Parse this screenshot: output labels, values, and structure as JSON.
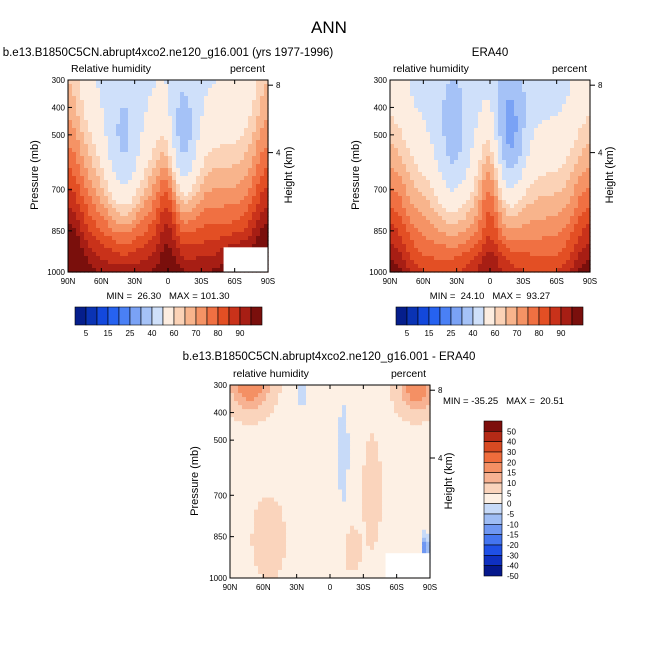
{
  "page_title": "ANN",
  "palette_full": [
    "#051E8C",
    "#0A33B4",
    "#1348DC",
    "#2662F0",
    "#4A80F5",
    "#7AA2F5",
    "#A5C2F7",
    "#CFE0FA",
    "#FDEDE0",
    "#FBD2B6",
    "#F8B48C",
    "#F59365",
    "#F07042",
    "#E34F24",
    "#C9321A",
    "#A71E14",
    "#7A0F0C"
  ],
  "palette_diff": [
    "#05188C",
    "#0F30C0",
    "#1F50E6",
    "#4475F0",
    "#6F97F2",
    "#9FBDF4",
    "#C7DAF8",
    "#FDF0E4",
    "#FAD4BC",
    "#F7B292",
    "#F49064",
    "#EF6C3C",
    "#D84A22",
    "#B42A16",
    "#7D0E0C"
  ],
  "chart_data": [
    {
      "type": "heatmap",
      "name": "model",
      "title": "b.e13.B1850C5CN.abrupt4xco2.ne120_g16.001 (yrs 1977-1996)",
      "left_label": "Relative humidity",
      "right_label": "percent",
      "stats": "MIN =  26.30   MAX = 101.30",
      "xlabel": "",
      "ylabel": "Pressure (mb)",
      "right_axis_label": "Height (km)",
      "x_ticks": [
        "90N",
        "60N",
        "30N",
        "0",
        "30S",
        "60S",
        "90S"
      ],
      "x_values": [
        90,
        60,
        30,
        0,
        -30,
        -60,
        -90
      ],
      "y_ticks": [
        "300",
        "400",
        "500",
        "700",
        "850",
        "1000"
      ],
      "y_values": [
        300,
        400,
        500,
        700,
        850,
        1000
      ],
      "height_ticks": [
        "8",
        "4"
      ],
      "height_values": [
        8,
        4
      ],
      "xlim": [
        90,
        -90
      ],
      "ylim": [
        300,
        1000
      ],
      "missing_region": {
        "lat": [
          -50,
          -90
        ],
        "p": [
          910,
          1000
        ]
      },
      "min": 26.3,
      "max": 101.3
    },
    {
      "type": "heatmap",
      "name": "obs",
      "title": "ERA40",
      "left_label": "relative humidity",
      "right_label": "percent",
      "stats": "MIN =  24.10   MAX =  93.27",
      "xlabel": "",
      "ylabel": "Pressure (mb)",
      "right_axis_label": "Height (km)",
      "x_ticks": [
        "90N",
        "60N",
        "30N",
        "0",
        "30S",
        "60S",
        "90S"
      ],
      "x_values": [
        90,
        60,
        30,
        0,
        -30,
        -60,
        -90
      ],
      "y_ticks": [
        "300",
        "400",
        "500",
        "700",
        "850",
        "1000"
      ],
      "y_values": [
        300,
        400,
        500,
        700,
        850,
        1000
      ],
      "height_ticks": [
        "8",
        "4"
      ],
      "height_values": [
        8,
        4
      ],
      "xlim": [
        90,
        -90
      ],
      "ylim": [
        300,
        1000
      ],
      "min": 24.1,
      "max": 93.27
    },
    {
      "type": "heatmap",
      "name": "diff",
      "title": "b.e13.B1850C5CN.abrupt4xco2.ne120_g16.001 - ERA40",
      "left_label": "relative humidity",
      "right_label": "percent",
      "stats": "MIN = -35.25   MAX =  20.51",
      "xlabel": "",
      "ylabel": "Pressure (mb)",
      "right_axis_label": "Height (km)",
      "x_ticks": [
        "90N",
        "60N",
        "30N",
        "0",
        "30S",
        "60S",
        "90S"
      ],
      "x_values": [
        90,
        60,
        30,
        0,
        -30,
        -60,
        -90
      ],
      "y_ticks": [
        "300",
        "400",
        "500",
        "700",
        "850",
        "1000"
      ],
      "y_values": [
        300,
        400,
        500,
        700,
        850,
        1000
      ],
      "height_ticks": [
        "8",
        "4"
      ],
      "height_values": [
        8,
        4
      ],
      "xlim": [
        90,
        -90
      ],
      "ylim": [
        300,
        1000
      ],
      "missing_region": {
        "lat": [
          -50,
          -90
        ],
        "p": [
          910,
          1000
        ]
      },
      "min": -35.25,
      "max": 20.51
    },
    {
      "type": "colorbar",
      "name": "full-colorbar",
      "orientation": "horizontal",
      "levels": [
        5,
        10,
        15,
        20,
        25,
        30,
        40,
        50,
        60,
        65,
        70,
        75,
        80,
        85,
        90,
        95
      ],
      "tick_labels": [
        "5",
        "15",
        "25",
        "40",
        "60",
        "70",
        "80",
        "90"
      ],
      "tick_levels": [
        5,
        15,
        25,
        40,
        60,
        70,
        80,
        90
      ]
    },
    {
      "type": "colorbar",
      "name": "diff-colorbar",
      "orientation": "vertical",
      "levels": [
        -50,
        -40,
        -30,
        -20,
        -15,
        -10,
        -5,
        0,
        5,
        10,
        15,
        20,
        30,
        40,
        50
      ],
      "tick_labels": [
        "50",
        "40",
        "30",
        "20",
        "15",
        "10",
        "5",
        "0",
        "-5",
        "-10",
        "-15",
        "-20",
        "-30",
        "-40",
        "-50"
      ]
    }
  ]
}
